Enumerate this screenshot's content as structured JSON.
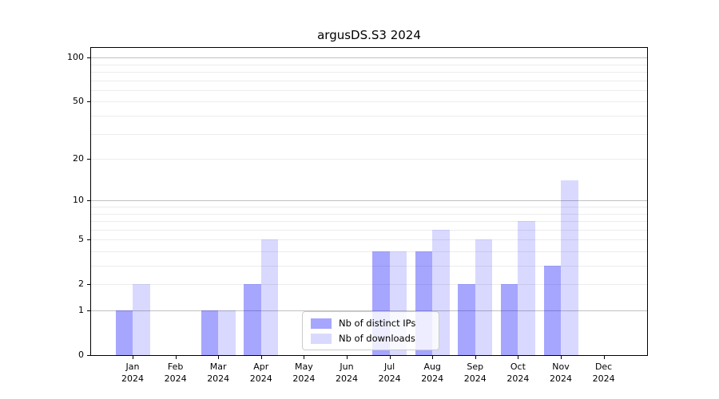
{
  "title": "argusDS.S3 2024",
  "legend": {
    "items": [
      {
        "label": "Nb of distinct IPs"
      },
      {
        "label": "Nb of downloads"
      }
    ]
  },
  "chart_data": {
    "type": "bar",
    "title": "argusDS.S3 2024",
    "categories": [
      "Jan",
      "Feb",
      "Mar",
      "Apr",
      "May",
      "Jun",
      "Jul",
      "Aug",
      "Sep",
      "Oct",
      "Nov",
      "Dec"
    ],
    "year_label": "2024",
    "series": [
      {
        "name": "Nb of distinct IPs",
        "values": [
          1,
          0,
          1,
          2,
          0,
          0,
          4,
          4,
          2,
          2,
          3,
          0
        ],
        "color": "#0000ff",
        "opacity": 0.35
      },
      {
        "name": "Nb of downloads",
        "values": [
          2,
          0,
          1,
          5,
          0,
          0,
          4,
          6,
          5,
          7,
          14,
          0
        ],
        "color": "#0000ff",
        "opacity": 0.15
      }
    ],
    "yscale": "log1p",
    "yticks": [
      0,
      1,
      2,
      5,
      10,
      20,
      50,
      100
    ],
    "major_gridlines": [
      1,
      10,
      100
    ],
    "minor_gridlines": [
      2,
      3,
      4,
      5,
      6,
      7,
      8,
      9,
      20,
      30,
      40,
      50,
      60,
      70,
      80,
      90
    ],
    "ylim": [
      0,
      116
    ],
    "xlabel": "",
    "ylabel": "",
    "grid": "both",
    "legend_position": "lower-center",
    "colors": {
      "grid_minor": "#ececec",
      "grid_major": "#c1c1c1",
      "spine": "#000000",
      "text": "#000000"
    }
  }
}
